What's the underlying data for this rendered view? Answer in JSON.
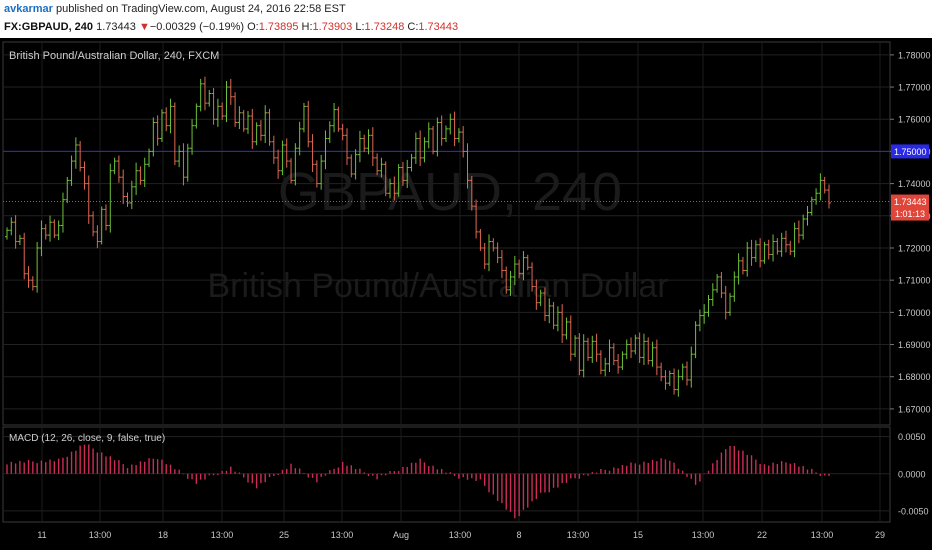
{
  "header": {
    "author": "avkarmar",
    "published_text": "published on TradingView.com, August 24, 2016 22:58 EST",
    "symbol": "FX:GBPAUD, 240",
    "last": "1.73443",
    "change_arrow": "▼",
    "change": "−0.00329 (−0.19%)",
    "o_label": "O:",
    "o_value": "1.73895",
    "h_label": "H:",
    "h_value": "1.73903",
    "l_label": "L:",
    "l_value": "1.73248",
    "c_label": "C:",
    "c_value": "1.73443"
  },
  "chart_data": [
    {
      "type": "candlestick",
      "title": "British Pound/Australian Dollar, 240, FXCM",
      "watermark_line1": "GBPAUD, 240",
      "watermark_line2": "British Pound/Australian Dollar",
      "x_tick_labels": [
        "11",
        "13:00",
        "18",
        "13:00",
        "25",
        "13:00",
        "Aug",
        "13:00",
        "8",
        "13:00",
        "15",
        "13:00",
        "22",
        "13:00",
        "29"
      ],
      "ylim": [
        1.665,
        1.784
      ],
      "y_ticks": [
        1.67,
        1.68,
        1.69,
        1.7,
        1.71,
        1.72,
        1.73,
        1.74,
        1.75,
        1.76,
        1.77,
        1.78
      ],
      "y_tick_labels": [
        "1.67000",
        "1.68000",
        "1.69000",
        "1.70000",
        "1.71000",
        "1.72000",
        "1.73000",
        "1.74000",
        "1.75000",
        "1.76000",
        "1.77000",
        "1.78000"
      ],
      "horizontal_line": {
        "value": 1.75,
        "label": "1.75000",
        "color": "#2929e6"
      },
      "last_price": {
        "value": 1.73443,
        "label": "1.73443",
        "countdown": "1:01:13",
        "color": "#e0453a"
      },
      "up_color": "#6ec23a",
      "down_color": "#e06a52",
      "closes": [
        1.7255,
        1.728,
        1.722,
        1.723,
        1.712,
        1.71,
        1.708,
        1.72,
        1.726,
        1.724,
        1.728,
        1.724,
        1.727,
        1.735,
        1.741,
        1.747,
        1.752,
        1.745,
        1.74,
        1.73,
        1.725,
        1.722,
        1.732,
        1.727,
        1.744,
        1.747,
        1.742,
        1.736,
        1.734,
        1.739,
        1.744,
        1.741,
        1.746,
        1.75,
        1.759,
        1.754,
        1.762,
        1.758,
        1.764,
        1.747,
        1.75,
        1.742,
        1.751,
        1.758,
        1.764,
        1.771,
        1.765,
        1.768,
        1.76,
        1.764,
        1.761,
        1.77,
        1.767,
        1.759,
        1.762,
        1.757,
        1.761,
        1.753,
        1.758,
        1.755,
        1.762,
        1.753,
        1.748,
        1.744,
        1.752,
        1.747,
        1.741,
        1.751,
        1.757,
        1.764,
        1.753,
        1.746,
        1.74,
        1.747,
        1.754,
        1.758,
        1.763,
        1.757,
        1.755,
        1.748,
        1.743,
        1.749,
        1.754,
        1.751,
        1.755,
        1.748,
        1.744,
        1.746,
        1.737,
        1.74,
        1.737,
        1.745,
        1.741,
        1.745,
        1.748,
        1.754,
        1.748,
        1.753,
        1.757,
        1.75,
        1.759,
        1.754,
        1.757,
        1.76,
        1.754,
        1.756,
        1.75,
        1.741,
        1.733,
        1.725,
        1.72,
        1.715,
        1.722,
        1.72,
        1.717,
        1.713,
        1.707,
        1.711,
        1.715,
        1.712,
        1.717,
        1.714,
        1.708,
        1.703,
        1.706,
        1.699,
        1.702,
        1.696,
        1.7,
        1.693,
        1.697,
        1.687,
        1.692,
        1.682,
        1.691,
        1.686,
        1.691,
        1.687,
        1.682,
        1.684,
        1.689,
        1.685,
        1.683,
        1.687,
        1.69,
        1.688,
        1.692,
        1.686,
        1.691,
        1.685,
        1.689,
        1.683,
        1.68,
        1.678,
        1.681,
        1.676,
        1.68,
        1.683,
        1.679,
        1.687,
        1.696,
        1.699,
        1.7,
        1.704,
        1.707,
        1.711,
        1.706,
        1.7,
        1.705,
        1.711,
        1.716,
        1.713,
        1.72,
        1.717,
        1.721,
        1.716,
        1.721,
        1.718,
        1.722,
        1.719,
        1.723,
        1.721,
        1.719,
        1.726,
        1.724,
        1.729,
        1.731,
        1.735,
        1.737,
        1.741,
        1.738,
        1.734
      ]
    },
    {
      "type": "bar",
      "title": "MACD (12, 26, close, 9, false, true)",
      "ylim": [
        -0.0065,
        0.0063
      ],
      "y_ticks": [
        -0.005,
        0.0,
        0.005
      ],
      "y_tick_labels": [
        "-0.0050",
        "0.0000",
        "0.0050"
      ],
      "bar_color": "#cc2d55",
      "histogram_anchors": [
        [
          0,
          0.0015
        ],
        [
          12,
          0.0018
        ],
        [
          18,
          0.004
        ],
        [
          28,
          0.001
        ],
        [
          35,
          0.0022
        ],
        [
          44,
          -0.0012
        ],
        [
          52,
          0.0008
        ],
        [
          58,
          -0.0018
        ],
        [
          66,
          0.0012
        ],
        [
          72,
          -0.001
        ],
        [
          78,
          0.0015
        ],
        [
          86,
          -0.0006
        ],
        [
          96,
          0.0018
        ],
        [
          104,
          -0.0003
        ],
        [
          110,
          -0.001
        ],
        [
          118,
          -0.006
        ],
        [
          124,
          -0.0028
        ],
        [
          132,
          -0.0006
        ],
        [
          138,
          0.0004
        ],
        [
          146,
          0.0014
        ],
        [
          154,
          0.002
        ],
        [
          160,
          -0.0015
        ],
        [
          168,
          0.004
        ],
        [
          176,
          0.0012
        ],
        [
          182,
          0.0016
        ],
        [
          190,
          -0.0003
        ],
        [
          196,
          0.0006
        ],
        [
          200,
          0.0005
        ]
      ]
    }
  ]
}
